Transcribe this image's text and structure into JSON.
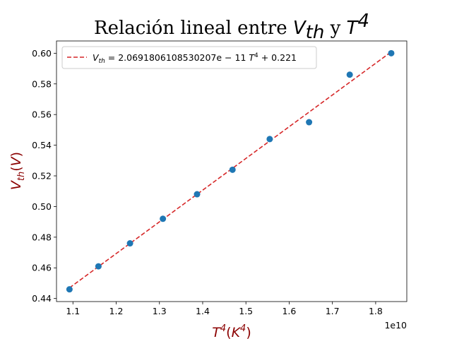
{
  "chart_data": {
    "type": "scatter",
    "title": {
      "prefix": "Relación lineal entre ",
      "var1": "V",
      "var1_sub": "th",
      "joiner": " y ",
      "var2": "T",
      "var2_sup": "4"
    },
    "xlabel": {
      "var": "T",
      "sup": "4",
      "open": "(",
      "unit": "K",
      "unit_sup": "4",
      "close": ")"
    },
    "ylabel": {
      "var": "V",
      "sub": "th",
      "open": "(",
      "unit": "V",
      "close": ")"
    },
    "x_offset_label": "1e10",
    "xlim": [
      10620000000,
      18720000000
    ],
    "ylim": [
      0.438,
      0.608
    ],
    "x_ticks": [
      {
        "value": 11000000000,
        "label": "1.1"
      },
      {
        "value": 12000000000,
        "label": "1.2"
      },
      {
        "value": 13000000000,
        "label": "1.3"
      },
      {
        "value": 14000000000,
        "label": "1.4"
      },
      {
        "value": 15000000000,
        "label": "1.5"
      },
      {
        "value": 16000000000,
        "label": "1.6"
      },
      {
        "value": 17000000000,
        "label": "1.7"
      },
      {
        "value": 18000000000,
        "label": "1.8"
      }
    ],
    "y_ticks": [
      {
        "value": 0.44,
        "label": "0.44"
      },
      {
        "value": 0.46,
        "label": "0.46"
      },
      {
        "value": 0.48,
        "label": "0.48"
      },
      {
        "value": 0.5,
        "label": "0.50"
      },
      {
        "value": 0.52,
        "label": "0.52"
      },
      {
        "value": 0.54,
        "label": "0.54"
      },
      {
        "value": 0.56,
        "label": "0.56"
      },
      {
        "value": 0.58,
        "label": "0.58"
      },
      {
        "value": 0.6,
        "label": "0.60"
      }
    ],
    "series": [
      {
        "kind": "points",
        "color": "#1f77b4",
        "x": [
          10920000000,
          11590000000,
          12320000000,
          13080000000,
          13870000000,
          14690000000,
          15550000000,
          16460000000,
          17400000000,
          18360000000
        ],
        "y": [
          0.446,
          0.461,
          0.476,
          0.492,
          0.508,
          0.524,
          0.544,
          0.555,
          0.586,
          0.6
        ]
      },
      {
        "kind": "fit-line",
        "color": "#d62728",
        "slope": 2.0691806108530207e-11,
        "intercept": 0.221,
        "x_range": [
          10920000000,
          18360000000
        ]
      }
    ],
    "legend": {
      "placement": "upper-left",
      "var": "V",
      "sub": "th",
      "eq_text": " = 2.0691806108530207e − 11 ",
      "var2": "T",
      "sup": "4",
      "tail": " + 0.221"
    },
    "grid": false,
    "colors": {
      "title": "#000000",
      "axis_label": "#8b0000"
    }
  }
}
